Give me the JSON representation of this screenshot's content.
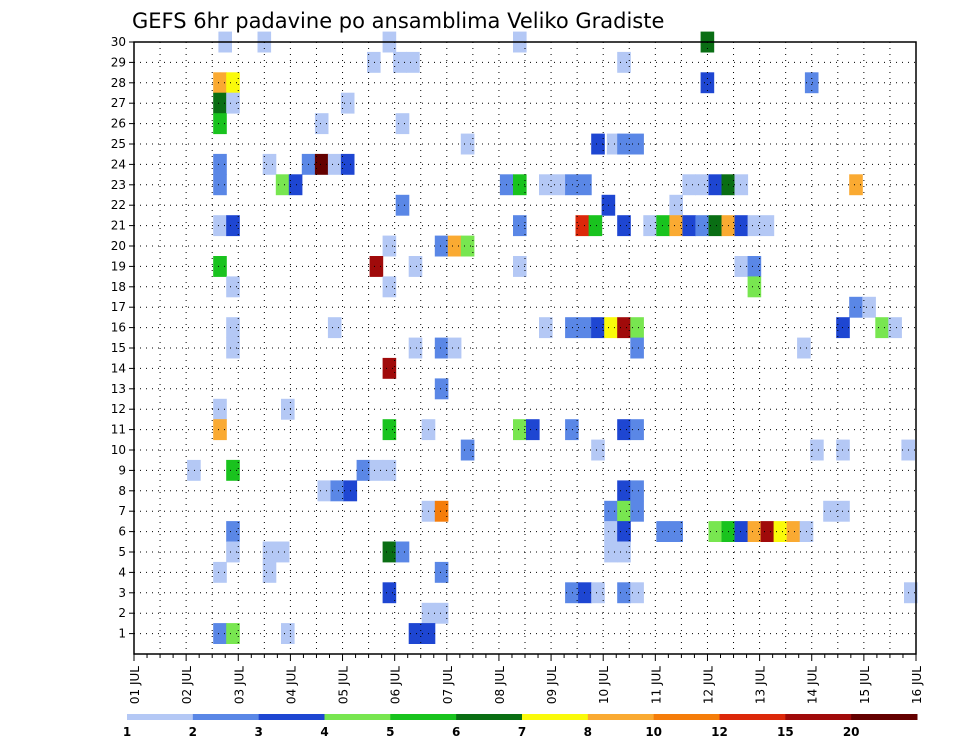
{
  "chart_data": {
    "type": "heatmap",
    "title": "GEFS 6hr padavine po ansamblima Veliko Gradiste",
    "xlabel": "",
    "ylabel": "",
    "x_ticks": [
      "01 JUL",
      "02 JUL",
      "03 JUL",
      "04 JUL",
      "05 JUL",
      "06 JUL",
      "07 JUL",
      "08 JUL",
      "09 JUL",
      "10 JUL",
      "11 JUL",
      "12 JUL",
      "13 JUL",
      "14 JUL",
      "15 JUL",
      "16 JUL"
    ],
    "x_range": [
      1,
      16
    ],
    "y_ticks": [
      1,
      2,
      3,
      4,
      5,
      6,
      7,
      8,
      9,
      10,
      11,
      12,
      13,
      14,
      15,
      16,
      17,
      18,
      19,
      20,
      21,
      22,
      23,
      24,
      25,
      26,
      27,
      28,
      29,
      30
    ],
    "y_range": [
      0,
      30
    ],
    "grid": true,
    "colorbar": {
      "labels": [
        "1",
        "2",
        "3",
        "4",
        "5",
        "6",
        "7",
        "8",
        "10",
        "12",
        "15",
        "20"
      ],
      "colors": [
        "#b4c8f5",
        "#5a87e6",
        "#1e46d2",
        "#78e650",
        "#19c31e",
        "#0a6e14",
        "#fafa0a",
        "#faaa32",
        "#f57d0a",
        "#dc280a",
        "#a00a0a",
        "#640000"
      ]
    },
    "bin_edges": [
      1,
      2,
      3,
      4,
      5,
      6,
      7,
      8,
      10,
      12,
      15,
      20,
      25
    ],
    "cells": [
      [
        2.75,
        30,
        1.5
      ],
      [
        3.5,
        30,
        1.5
      ],
      [
        5.9,
        30,
        1.5
      ],
      [
        8.4,
        30,
        1.5
      ],
      [
        12,
        30,
        6.5
      ],
      [
        5.6,
        29,
        1.5
      ],
      [
        6.1,
        29,
        1.5
      ],
      [
        6.35,
        29,
        1.5
      ],
      [
        10.4,
        29,
        1.5
      ],
      [
        2.65,
        28,
        9
      ],
      [
        2.9,
        28,
        7.5
      ],
      [
        12,
        28,
        3.5
      ],
      [
        14,
        28,
        2.5
      ],
      [
        2.65,
        27,
        6.5
      ],
      [
        2.9,
        27,
        1.5
      ],
      [
        5.1,
        27,
        1.5
      ],
      [
        2.65,
        26,
        5.5
      ],
      [
        4.6,
        26,
        1.5
      ],
      [
        6.15,
        26,
        1.5
      ],
      [
        7.4,
        25,
        1.5
      ],
      [
        9.9,
        25,
        3.5
      ],
      [
        10.2,
        25,
        1.5
      ],
      [
        10.4,
        25,
        2.5
      ],
      [
        10.65,
        25,
        2.5
      ],
      [
        2.65,
        24,
        2.5
      ],
      [
        3.6,
        24,
        1.5
      ],
      [
        4.35,
        24,
        2.5
      ],
      [
        4.6,
        24,
        22
      ],
      [
        4.85,
        24,
        1.5
      ],
      [
        5.1,
        24,
        3.5
      ],
      [
        2.65,
        23,
        2.5
      ],
      [
        3.85,
        23,
        4.5
      ],
      [
        4.1,
        23,
        3.5
      ],
      [
        8.15,
        23,
        2.5
      ],
      [
        8.4,
        23,
        5.5
      ],
      [
        8.9,
        23,
        1.5
      ],
      [
        9.15,
        23,
        1.5
      ],
      [
        9.4,
        23,
        2.5
      ],
      [
        9.65,
        23,
        2.5
      ],
      [
        11.65,
        23,
        1.5
      ],
      [
        11.9,
        23,
        1.5
      ],
      [
        12.15,
        23,
        3.5
      ],
      [
        12.4,
        23,
        6.5
      ],
      [
        12.65,
        23,
        1.5
      ],
      [
        14.85,
        23,
        9
      ],
      [
        6.15,
        22,
        2.5
      ],
      [
        10.1,
        22,
        3.5
      ],
      [
        11.4,
        22,
        1.5
      ],
      [
        2.65,
        21,
        1.5
      ],
      [
        2.9,
        21,
        3.5
      ],
      [
        8.4,
        21,
        2.5
      ],
      [
        9.6,
        21,
        13
      ],
      [
        9.85,
        21,
        5.5
      ],
      [
        10.4,
        21,
        3.5
      ],
      [
        10.9,
        21,
        1.5
      ],
      [
        11.15,
        21,
        5.5
      ],
      [
        11.4,
        21,
        9
      ],
      [
        11.65,
        21,
        3.5
      ],
      [
        11.9,
        21,
        2.5
      ],
      [
        12.15,
        21,
        6.5
      ],
      [
        12.4,
        21,
        9
      ],
      [
        12.65,
        21,
        3.5
      ],
      [
        12.9,
        21,
        1.5
      ],
      [
        13.15,
        21,
        1.5
      ],
      [
        5.9,
        20,
        1.5
      ],
      [
        6.9,
        20,
        2.5
      ],
      [
        7.15,
        20,
        9
      ],
      [
        7.4,
        20,
        4.5
      ],
      [
        2.65,
        19,
        5.5
      ],
      [
        5.65,
        19,
        17
      ],
      [
        6.4,
        19,
        1.5
      ],
      [
        8.4,
        19,
        1.5
      ],
      [
        12.65,
        19,
        1.5
      ],
      [
        12.9,
        19,
        2.5
      ],
      [
        2.9,
        18,
        1.5
      ],
      [
        5.9,
        18,
        1.5
      ],
      [
        12.9,
        18,
        4.5
      ],
      [
        14.85,
        17,
        2.5
      ],
      [
        15.1,
        17,
        1.5
      ],
      [
        2.9,
        16,
        1.5
      ],
      [
        4.85,
        16,
        1.5
      ],
      [
        8.9,
        16,
        1.5
      ],
      [
        9.4,
        16,
        2.5
      ],
      [
        9.65,
        16,
        2.5
      ],
      [
        9.9,
        16,
        3.5
      ],
      [
        10.15,
        16,
        7.5
      ],
      [
        10.4,
        16,
        17
      ],
      [
        10.65,
        16,
        4.5
      ],
      [
        14.6,
        16,
        3.5
      ],
      [
        15.35,
        16,
        4.5
      ],
      [
        15.6,
        16,
        1.5
      ],
      [
        2.9,
        15,
        1.5
      ],
      [
        6.4,
        15,
        1.5
      ],
      [
        6.9,
        15,
        2.5
      ],
      [
        7.15,
        15,
        1.5
      ],
      [
        10.65,
        15,
        2.5
      ],
      [
        13.85,
        15,
        1.5
      ],
      [
        5.9,
        14,
        17
      ],
      [
        6.9,
        13,
        2.5
      ],
      [
        2.65,
        12,
        1.5
      ],
      [
        3.95,
        12,
        1.5
      ],
      [
        2.65,
        11,
        9
      ],
      [
        5.9,
        11,
        5.5
      ],
      [
        6.65,
        11,
        1.5
      ],
      [
        8.4,
        11,
        4.5
      ],
      [
        8.65,
        11,
        3.5
      ],
      [
        9.4,
        11,
        2.5
      ],
      [
        10.4,
        11,
        3.5
      ],
      [
        10.65,
        11,
        2.5
      ],
      [
        7.4,
        10,
        2.5
      ],
      [
        9.9,
        10,
        1.5
      ],
      [
        14.1,
        10,
        1.5
      ],
      [
        14.6,
        10,
        1.5
      ],
      [
        15.85,
        10,
        1.5
      ],
      [
        2.15,
        9,
        1.5
      ],
      [
        2.9,
        9,
        5.5
      ],
      [
        5.4,
        9,
        2.5
      ],
      [
        5.65,
        9,
        1.5
      ],
      [
        5.9,
        9,
        1.5
      ],
      [
        4.65,
        8,
        1.5
      ],
      [
        4.9,
        8,
        2.5
      ],
      [
        5.15,
        8,
        3.5
      ],
      [
        10.4,
        8,
        3.5
      ],
      [
        10.65,
        8,
        2.5
      ],
      [
        6.65,
        7,
        1.5
      ],
      [
        6.9,
        7,
        11
      ],
      [
        10.15,
        7,
        2.5
      ],
      [
        10.4,
        7,
        4.5
      ],
      [
        10.65,
        7,
        2.5
      ],
      [
        14.35,
        7,
        1.5
      ],
      [
        14.6,
        7,
        1.5
      ],
      [
        2.9,
        6,
        2.5
      ],
      [
        10.15,
        6,
        1.5
      ],
      [
        10.4,
        6,
        3.5
      ],
      [
        11.15,
        6,
        2.5
      ],
      [
        11.4,
        6,
        2.5
      ],
      [
        12.15,
        6,
        4.5
      ],
      [
        12.4,
        6,
        5.5
      ],
      [
        12.65,
        6,
        3.5
      ],
      [
        12.9,
        6,
        9
      ],
      [
        13.15,
        6,
        17
      ],
      [
        13.4,
        6,
        7.5
      ],
      [
        13.65,
        6,
        9
      ],
      [
        13.9,
        6,
        1.5
      ],
      [
        2.9,
        5,
        1.5
      ],
      [
        3.6,
        5,
        1.5
      ],
      [
        3.85,
        5,
        1.5
      ],
      [
        5.9,
        5,
        6.5
      ],
      [
        6.15,
        5,
        2.5
      ],
      [
        10.15,
        5,
        1.5
      ],
      [
        10.4,
        5,
        1.5
      ],
      [
        2.65,
        4,
        1.5
      ],
      [
        3.6,
        4,
        1.5
      ],
      [
        6.9,
        4,
        2.5
      ],
      [
        5.9,
        3,
        3.5
      ],
      [
        9.4,
        3,
        2.5
      ],
      [
        9.65,
        3,
        3.5
      ],
      [
        9.9,
        3,
        1.5
      ],
      [
        10.4,
        3,
        2.5
      ],
      [
        10.65,
        3,
        1.5
      ],
      [
        15.9,
        3,
        1.5
      ],
      [
        6.65,
        2,
        1.5
      ],
      [
        6.9,
        2,
        1.5
      ],
      [
        2.65,
        1,
        2.5
      ],
      [
        2.9,
        1,
        4.5
      ],
      [
        3.95,
        1,
        1.5
      ],
      [
        6.4,
        1,
        3.5
      ],
      [
        6.65,
        1,
        3.5
      ]
    ]
  }
}
